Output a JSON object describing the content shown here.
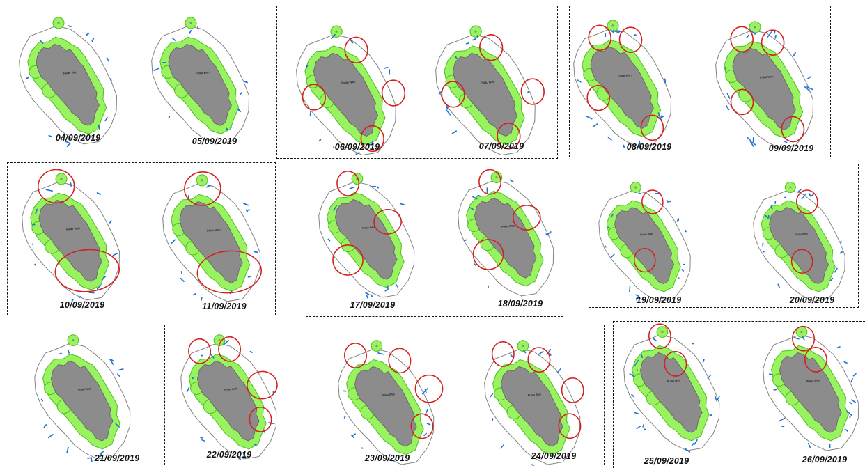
{
  "colors": {
    "island": "#8c8c8c",
    "buffer": "#99f25f",
    "buffer_edge": "#4bbf1d",
    "ring": "#808080",
    "track": "#1f73d6",
    "highlight": "#d42020",
    "group_border": "#111111"
  },
  "island_label": "Pulau Weh",
  "maps": [
    {
      "date": "04/09/2019"
    },
    {
      "date": "05/09/2019"
    },
    {
      "date": "06/09/2019"
    },
    {
      "date": "07/09/2019"
    },
    {
      "date": "08/09/2019"
    },
    {
      "date": "09/09/2019"
    },
    {
      "date": "10/09/2019"
    },
    {
      "date": "11/09/2019"
    },
    {
      "date": "17/09/2019"
    },
    {
      "date": "18/09/2019"
    },
    {
      "date": "19/09/2019"
    },
    {
      "date": "20/09/2019"
    },
    {
      "date": "21/09/2019"
    },
    {
      "date": "22/09/2019"
    },
    {
      "date": "23/09/2019"
    },
    {
      "date": "24/09/2019"
    },
    {
      "date": "25/09/2019"
    },
    {
      "date": "26/09/2019"
    }
  ]
}
